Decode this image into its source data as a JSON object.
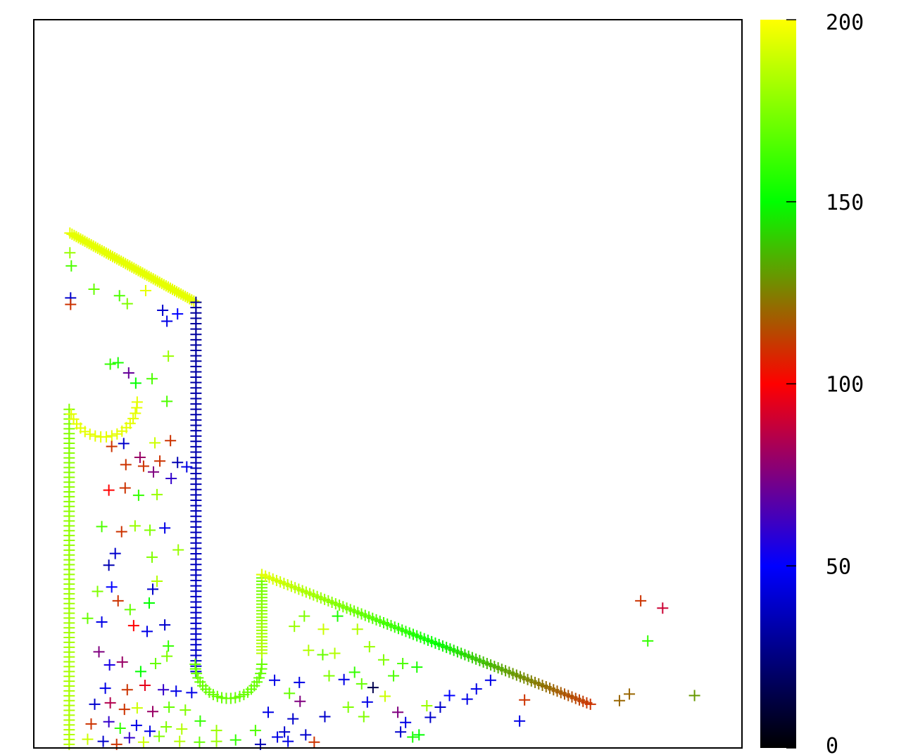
{
  "chart_data": {
    "type": "scatter",
    "title": "",
    "xlabel": "",
    "ylabel": "",
    "marker": "plus",
    "xlim": [
      0,
      100
    ],
    "ylim": [
      0,
      100
    ],
    "colorbar": {
      "range": [
        0,
        200
      ],
      "ticks": [
        {
          "value": 0,
          "label": "0"
        },
        {
          "value": 50,
          "label": "50"
        },
        {
          "value": 100,
          "label": "100"
        },
        {
          "value": 150,
          "label": "150"
        },
        {
          "value": 200,
          "label": "200"
        }
      ],
      "colormap_stops": [
        {
          "value": 0,
          "color": "#000000"
        },
        {
          "value": 50,
          "color": "#0000ff"
        },
        {
          "value": 100,
          "color": "#ff0000"
        },
        {
          "value": 150,
          "color": "#00ff00"
        },
        {
          "value": 200,
          "color": "#ffff00"
        }
      ]
    },
    "segments": [
      {
        "x0": 5.1,
        "y0": 70.7,
        "x1": 22.9,
        "y1": 61.2,
        "c0": 195,
        "c1": 195,
        "n": 60
      },
      {
        "x0": 22.9,
        "y0": 61.2,
        "x1": 22.9,
        "y1": 10.5,
        "c0": 30,
        "c1": 40,
        "n": 70
      },
      {
        "x0": 5.0,
        "y0": 46.5,
        "x1": 5.0,
        "y1": 0.5,
        "c0": 175,
        "c1": 185,
        "n": 70
      },
      {
        "x0": 32.2,
        "y0": 23.8,
        "x1": 32.2,
        "y1": 13.0,
        "c0": 170,
        "c1": 185,
        "n": 25
      },
      {
        "x0": 32.2,
        "y0": 23.8,
        "x1": 78.6,
        "y1": 6.0,
        "c0": 195,
        "c1": 110,
        "n": 90
      }
    ],
    "arcs": [
      {
        "cx": 27.5,
        "cy": 11.5,
        "r": 4.7,
        "a0": 180,
        "a1": 360,
        "c": 170,
        "n": 24
      },
      {
        "cx": 9.8,
        "cy": 47.5,
        "r": 4.8,
        "a0": 200,
        "a1": 360,
        "c": 195,
        "n": 18
      }
    ],
    "points": [
      [
        5.2,
        61.8,
        40
      ],
      [
        5.2,
        60.9,
        110
      ],
      [
        5.3,
        66.2,
        165
      ],
      [
        5.1,
        68.0,
        180
      ],
      [
        8.5,
        63.0,
        170
      ],
      [
        12.1,
        62.1,
        165
      ],
      [
        13.2,
        61.0,
        175
      ],
      [
        15.8,
        62.8,
        195
      ],
      [
        18.2,
        60.1,
        40
      ],
      [
        18.8,
        58.6,
        45
      ],
      [
        20.3,
        59.6,
        50
      ],
      [
        19.0,
        53.8,
        180
      ],
      [
        10.8,
        52.7,
        160
      ],
      [
        13.4,
        51.5,
        70
      ],
      [
        14.4,
        50.1,
        150
      ],
      [
        11.9,
        52.9,
        155
      ],
      [
        16.7,
        50.7,
        165
      ],
      [
        18.8,
        47.6,
        165
      ],
      [
        19.3,
        42.2,
        110
      ],
      [
        17.1,
        41.9,
        190
      ],
      [
        11.0,
        41.4,
        110
      ],
      [
        12.7,
        41.8,
        40
      ],
      [
        15.0,
        39.9,
        80
      ],
      [
        17.8,
        39.4,
        110
      ],
      [
        20.3,
        39.2,
        35
      ],
      [
        13.0,
        38.9,
        110
      ],
      [
        15.5,
        38.7,
        110
      ],
      [
        16.9,
        37.9,
        75
      ],
      [
        10.6,
        35.4,
        100
      ],
      [
        12.9,
        35.7,
        110
      ],
      [
        14.8,
        34.7,
        160
      ],
      [
        17.4,
        34.8,
        180
      ],
      [
        19.4,
        37.0,
        60
      ],
      [
        21.6,
        38.6,
        45
      ],
      [
        9.6,
        30.4,
        165
      ],
      [
        14.3,
        30.5,
        180
      ],
      [
        16.4,
        29.9,
        175
      ],
      [
        18.5,
        30.2,
        45
      ],
      [
        12.4,
        29.7,
        110
      ],
      [
        11.5,
        26.7,
        40
      ],
      [
        10.6,
        25.1,
        35
      ],
      [
        16.7,
        26.2,
        175
      ],
      [
        16.8,
        21.8,
        40
      ],
      [
        11.0,
        22.1,
        50
      ],
      [
        9.0,
        21.5,
        175
      ],
      [
        11.9,
        20.2,
        110
      ],
      [
        13.6,
        19.0,
        170
      ],
      [
        16.3,
        19.9,
        150
      ],
      [
        17.4,
        22.9,
        185
      ],
      [
        20.4,
        27.2,
        180
      ],
      [
        7.6,
        17.8,
        170
      ],
      [
        9.6,
        17.3,
        45
      ],
      [
        14.1,
        16.8,
        100
      ],
      [
        16.0,
        16.0,
        45
      ],
      [
        18.5,
        16.9,
        40
      ],
      [
        19.0,
        14.0,
        160
      ],
      [
        9.2,
        13.2,
        75
      ],
      [
        10.7,
        11.4,
        55
      ],
      [
        12.5,
        11.8,
        80
      ],
      [
        15.1,
        10.5,
        150
      ],
      [
        17.2,
        11.6,
        170
      ],
      [
        18.8,
        12.6,
        175
      ],
      [
        10.1,
        8.2,
        45
      ],
      [
        13.2,
        8.0,
        110
      ],
      [
        15.7,
        8.6,
        95
      ],
      [
        18.3,
        8.0,
        60
      ],
      [
        20.1,
        7.8,
        45
      ],
      [
        22.3,
        7.6,
        45
      ],
      [
        8.6,
        6.0,
        40
      ],
      [
        10.8,
        6.2,
        85
      ],
      [
        12.8,
        5.3,
        110
      ],
      [
        14.6,
        5.5,
        190
      ],
      [
        16.8,
        5.0,
        80
      ],
      [
        19.1,
        5.6,
        170
      ],
      [
        21.4,
        5.2,
        175
      ],
      [
        8.1,
        3.3,
        110
      ],
      [
        10.6,
        3.6,
        60
      ],
      [
        12.2,
        2.7,
        160
      ],
      [
        14.5,
        3.1,
        45
      ],
      [
        16.4,
        2.3,
        45
      ],
      [
        18.7,
        2.9,
        175
      ],
      [
        20.9,
        2.6,
        185
      ],
      [
        23.5,
        3.7,
        160
      ],
      [
        25.8,
        2.4,
        180
      ],
      [
        7.6,
        1.2,
        190
      ],
      [
        9.8,
        0.9,
        40
      ],
      [
        11.7,
        0.5,
        110
      ],
      [
        13.5,
        1.4,
        60
      ],
      [
        15.5,
        0.8,
        190
      ],
      [
        17.7,
        1.6,
        175
      ],
      [
        20.6,
        0.9,
        185
      ],
      [
        23.4,
        0.8,
        170
      ],
      [
        25.8,
        0.9,
        180
      ],
      [
        28.5,
        1.1,
        160
      ],
      [
        31.3,
        2.4,
        165
      ],
      [
        32.0,
        0.5,
        35
      ],
      [
        34.4,
        1.5,
        45
      ],
      [
        35.4,
        2.2,
        40
      ],
      [
        36.6,
        4.0,
        40
      ],
      [
        37.6,
        6.4,
        75
      ],
      [
        34.0,
        9.3,
        45
      ],
      [
        37.5,
        9.0,
        45
      ],
      [
        36.1,
        7.5,
        170
      ],
      [
        33.1,
        4.9,
        45
      ],
      [
        35.9,
        0.9,
        45
      ],
      [
        38.4,
        1.8,
        40
      ],
      [
        39.6,
        0.8,
        110
      ],
      [
        41.1,
        4.3,
        40
      ],
      [
        43.8,
        9.4,
        45
      ],
      [
        45.3,
        10.4,
        160
      ],
      [
        46.3,
        8.8,
        170
      ],
      [
        47.1,
        6.3,
        45
      ],
      [
        46.6,
        4.3,
        175
      ],
      [
        47.9,
        8.3,
        15
      ],
      [
        49.6,
        7.1,
        190
      ],
      [
        50.8,
        9.9,
        165
      ],
      [
        51.4,
        4.9,
        75
      ],
      [
        52.5,
        3.5,
        45
      ],
      [
        51.8,
        2.2,
        40
      ],
      [
        53.5,
        1.5,
        155
      ],
      [
        54.4,
        1.8,
        150
      ],
      [
        56.0,
        4.2,
        40
      ],
      [
        57.4,
        5.6,
        40
      ],
      [
        58.7,
        7.2,
        50
      ],
      [
        61.2,
        6.7,
        45
      ],
      [
        62.5,
        8.1,
        45
      ],
      [
        64.5,
        9.3,
        45
      ],
      [
        69.3,
        6.6,
        110
      ],
      [
        68.6,
        3.7,
        45
      ],
      [
        38.8,
        13.4,
        185
      ],
      [
        40.8,
        12.8,
        170
      ],
      [
        42.5,
        13.0,
        185
      ],
      [
        36.8,
        16.7,
        180
      ],
      [
        38.2,
        18.1,
        175
      ],
      [
        40.9,
        16.3,
        190
      ],
      [
        42.9,
        18.1,
        155
      ],
      [
        45.7,
        16.3,
        185
      ],
      [
        47.4,
        13.9,
        180
      ],
      [
        49.4,
        12.1,
        175
      ],
      [
        52.1,
        11.6,
        165
      ],
      [
        54.1,
        11.1,
        155
      ],
      [
        55.5,
        5.8,
        180
      ],
      [
        41.7,
        9.9,
        175
      ],
      [
        44.4,
        5.6,
        175
      ],
      [
        85.7,
        20.2,
        110
      ],
      [
        88.8,
        19.2,
        90
      ],
      [
        86.7,
        14.7,
        160
      ],
      [
        82.7,
        6.5,
        120
      ],
      [
        84.1,
        7.4,
        120
      ],
      [
        93.3,
        7.2,
        130
      ]
    ]
  }
}
